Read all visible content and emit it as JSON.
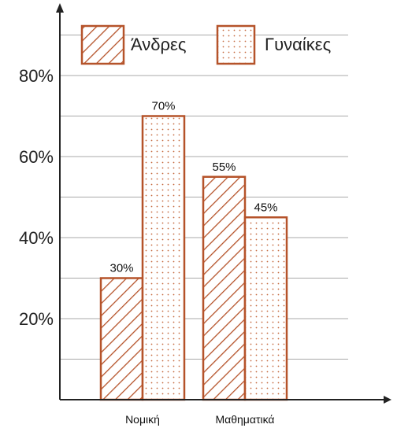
{
  "chart_data": {
    "type": "bar",
    "categories": [
      "Νομική",
      "Μαθηματικά"
    ],
    "series": [
      {
        "name": "Άνδρες",
        "values": [
          30,
          55
        ],
        "pattern": "hatch"
      },
      {
        "name": "Γυναίκες",
        "values": [
          70,
          45
        ],
        "pattern": "dots"
      }
    ],
    "data_labels": [
      [
        "30%",
        "55%"
      ],
      [
        "70%",
        "45%"
      ]
    ],
    "yticks": [
      20,
      40,
      60,
      80
    ],
    "ytick_labels": [
      "20%",
      "40%",
      "60%",
      "80%"
    ],
    "ylim": [
      0,
      90
    ],
    "minor_step": 10,
    "grid": true,
    "legend_position": "top",
    "colors": {
      "bar_stroke": "#b5532a",
      "grid": "#a8a8a8",
      "axis": "#222222",
      "dot": "#c4673d"
    }
  }
}
